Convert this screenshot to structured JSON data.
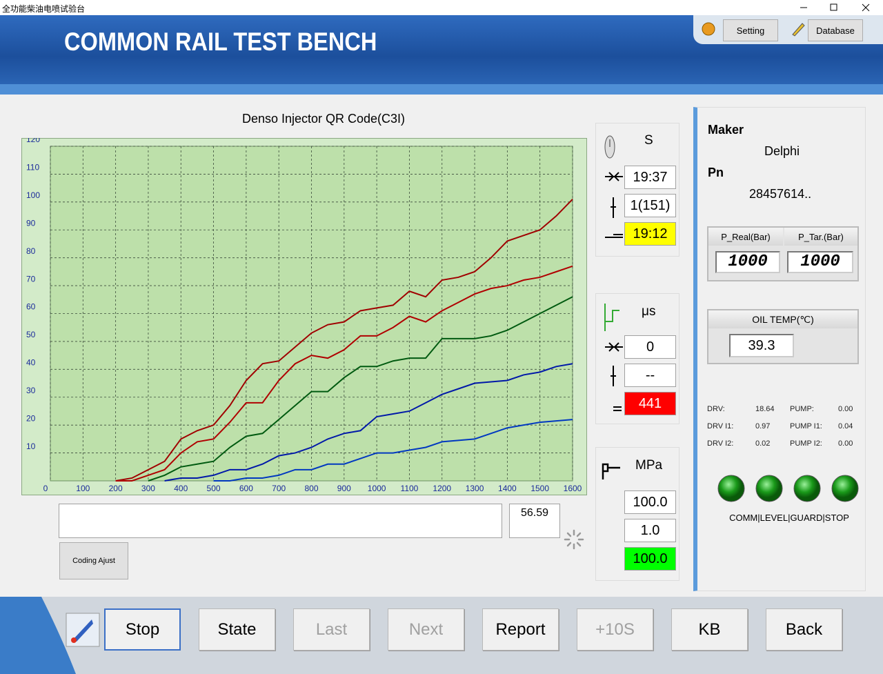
{
  "window": {
    "title": "全功能柴油电喷试验台"
  },
  "header": {
    "title": "COMMON RAIL TEST BENCH",
    "buttons": [
      "Setting",
      "Database"
    ]
  },
  "chart_data": {
    "type": "line",
    "title": "Denso Injector QR Code(C3I)",
    "x": [
      200,
      250,
      300,
      350,
      400,
      450,
      500,
      550,
      600,
      650,
      700,
      750,
      800,
      850,
      900,
      950,
      1000,
      1050,
      1100,
      1150,
      1200,
      1250,
      1300,
      1350,
      1400,
      1450,
      1500,
      1550,
      1600
    ],
    "series": [
      {
        "color": "#a00000",
        "values": [
          0,
          1,
          4,
          7,
          15,
          18,
          20,
          27,
          36,
          42,
          43,
          48,
          53,
          56,
          57,
          61,
          62,
          63,
          68,
          66,
          72,
          73,
          75,
          80,
          86,
          88,
          90,
          95,
          101
        ]
      },
      {
        "color": "#b00000",
        "values": [
          0,
          0,
          2,
          4,
          10,
          14,
          15,
          21,
          28,
          28,
          36,
          42,
          45,
          44,
          47,
          52,
          52,
          55,
          59,
          57,
          61,
          64,
          67,
          69,
          70,
          72,
          73,
          75,
          77
        ]
      },
      {
        "color": "#005a10",
        "values": [
          null,
          null,
          0,
          2,
          5,
          6,
          7,
          12,
          16,
          17,
          22,
          27,
          32,
          32,
          37,
          41,
          41,
          43,
          44,
          44,
          51,
          51,
          51,
          52,
          54,
          57,
          60,
          63,
          66
        ]
      },
      {
        "color": "#0018a8",
        "values": [
          null,
          null,
          null,
          0,
          1,
          1,
          2,
          4,
          4,
          6,
          9,
          10,
          12,
          15,
          17,
          18,
          23,
          24,
          25,
          28,
          31,
          33,
          35,
          35.5,
          36,
          38,
          39,
          41,
          42
        ]
      },
      {
        "color": "#0038c0",
        "values": [
          null,
          null,
          null,
          null,
          null,
          null,
          0,
          0,
          1,
          1,
          2,
          4,
          4,
          6,
          6,
          8,
          10,
          10,
          11,
          12,
          14,
          14.5,
          15,
          17,
          19,
          20,
          21,
          21.5,
          22
        ]
      }
    ],
    "xlim": [
      0,
      1600
    ],
    "xticks": [
      0,
      100,
      200,
      300,
      400,
      500,
      600,
      700,
      800,
      900,
      1000,
      1100,
      1200,
      1300,
      1400,
      1500,
      1600
    ],
    "ylim": [
      0,
      120
    ],
    "yticks": [
      10,
      20,
      30,
      40,
      50,
      60,
      70,
      80,
      90,
      100,
      110,
      120
    ],
    "grid": true
  },
  "input": {
    "value": "56.59",
    "button": "Coding Ajust"
  },
  "timer": {
    "unit": "S",
    "values": [
      "19:37",
      "1(151)",
      "19:12"
    ]
  },
  "pulse": {
    "unit": "μs",
    "values": [
      "0",
      "--",
      "441"
    ]
  },
  "pressure": {
    "unit": "MPa",
    "values": [
      "100.0",
      "1.0",
      "100.0"
    ]
  },
  "info": {
    "maker_label": "Maker",
    "maker": "Delphi",
    "pn_label": "Pn",
    "pn": "28457614.."
  },
  "rail": {
    "labels": [
      "P_Real(Bar)",
      "P_Tar.(Bar)"
    ],
    "values": [
      "1000",
      "1000"
    ]
  },
  "oil": {
    "label": "OIL TEMP(℃)",
    "value": "39.3"
  },
  "readings": [
    [
      "DRV:",
      "18.64",
      "PUMP:",
      "0.00"
    ],
    [
      "DRV I1:",
      "0.97",
      "PUMP I1:",
      "0.04"
    ],
    [
      "DRV I2:",
      "0.02",
      "PUMP I2:",
      "0.00"
    ]
  ],
  "indicators": {
    "label": "COMM|LEVEL|GUARD|STOP"
  },
  "footer": {
    "buttons": [
      "Stop",
      "State",
      "Last",
      "Next",
      "Report",
      "+10S",
      "KB",
      "Back"
    ]
  }
}
